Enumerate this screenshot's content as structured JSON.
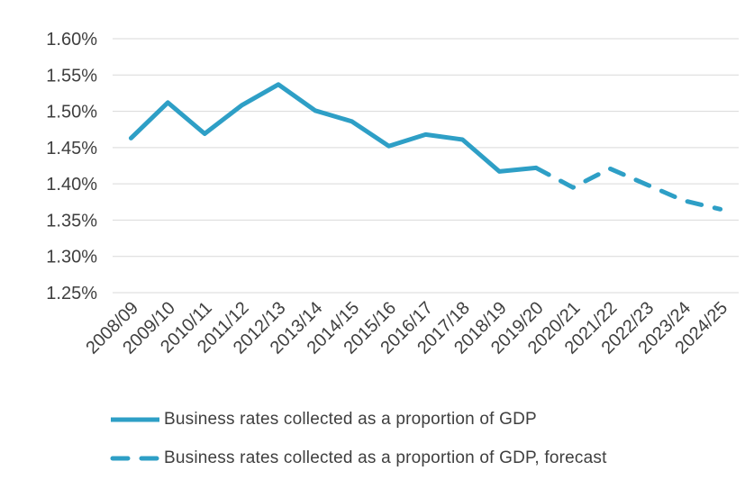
{
  "chart_data": {
    "type": "line",
    "title": "",
    "xlabel": "",
    "ylabel": "",
    "categories": [
      "2008/09",
      "2009/10",
      "2010/11",
      "2011/12",
      "2012/13",
      "2013/14",
      "2014/15",
      "2015/16",
      "2016/17",
      "2017/18",
      "2018/19",
      "2019/20",
      "2020/21",
      "2021/22",
      "2022/23",
      "2023/24",
      "2024/25"
    ],
    "series": [
      {
        "name": "Business rates collected as a proportion of GDP",
        "style": "solid",
        "color": "#2E9FC6",
        "values": [
          1.463,
          1.512,
          1.469,
          1.508,
          1.537,
          1.501,
          1.486,
          1.452,
          1.468,
          1.461,
          1.417,
          1.422,
          null,
          null,
          null,
          null,
          null
        ]
      },
      {
        "name": "Business rates collected as a proportion of GDP, forecast",
        "style": "dashed",
        "color": "#2E9FC6",
        "values": [
          null,
          null,
          null,
          null,
          null,
          null,
          null,
          null,
          null,
          null,
          null,
          1.422,
          1.395,
          1.421,
          1.399,
          1.377,
          1.365
        ]
      }
    ],
    "y_axis": {
      "min": 1.25,
      "max": 1.6,
      "step": 0.05,
      "tick_labels": [
        "1.60%",
        "1.55%",
        "1.50%",
        "1.45%",
        "1.40%",
        "1.35%",
        "1.30%",
        "1.25%"
      ]
    },
    "grid": true,
    "legend_position": "bottom-left"
  },
  "legend": {
    "items": [
      {
        "label": "Business rates collected as a proportion of GDP",
        "style": "solid"
      },
      {
        "label": "Business rates collected as a proportion of GDP, forecast",
        "style": "dashed"
      }
    ]
  },
  "colors": {
    "line": "#2E9FC6",
    "gridline": "#D9D9D9",
    "text": "#3F3F3F"
  }
}
